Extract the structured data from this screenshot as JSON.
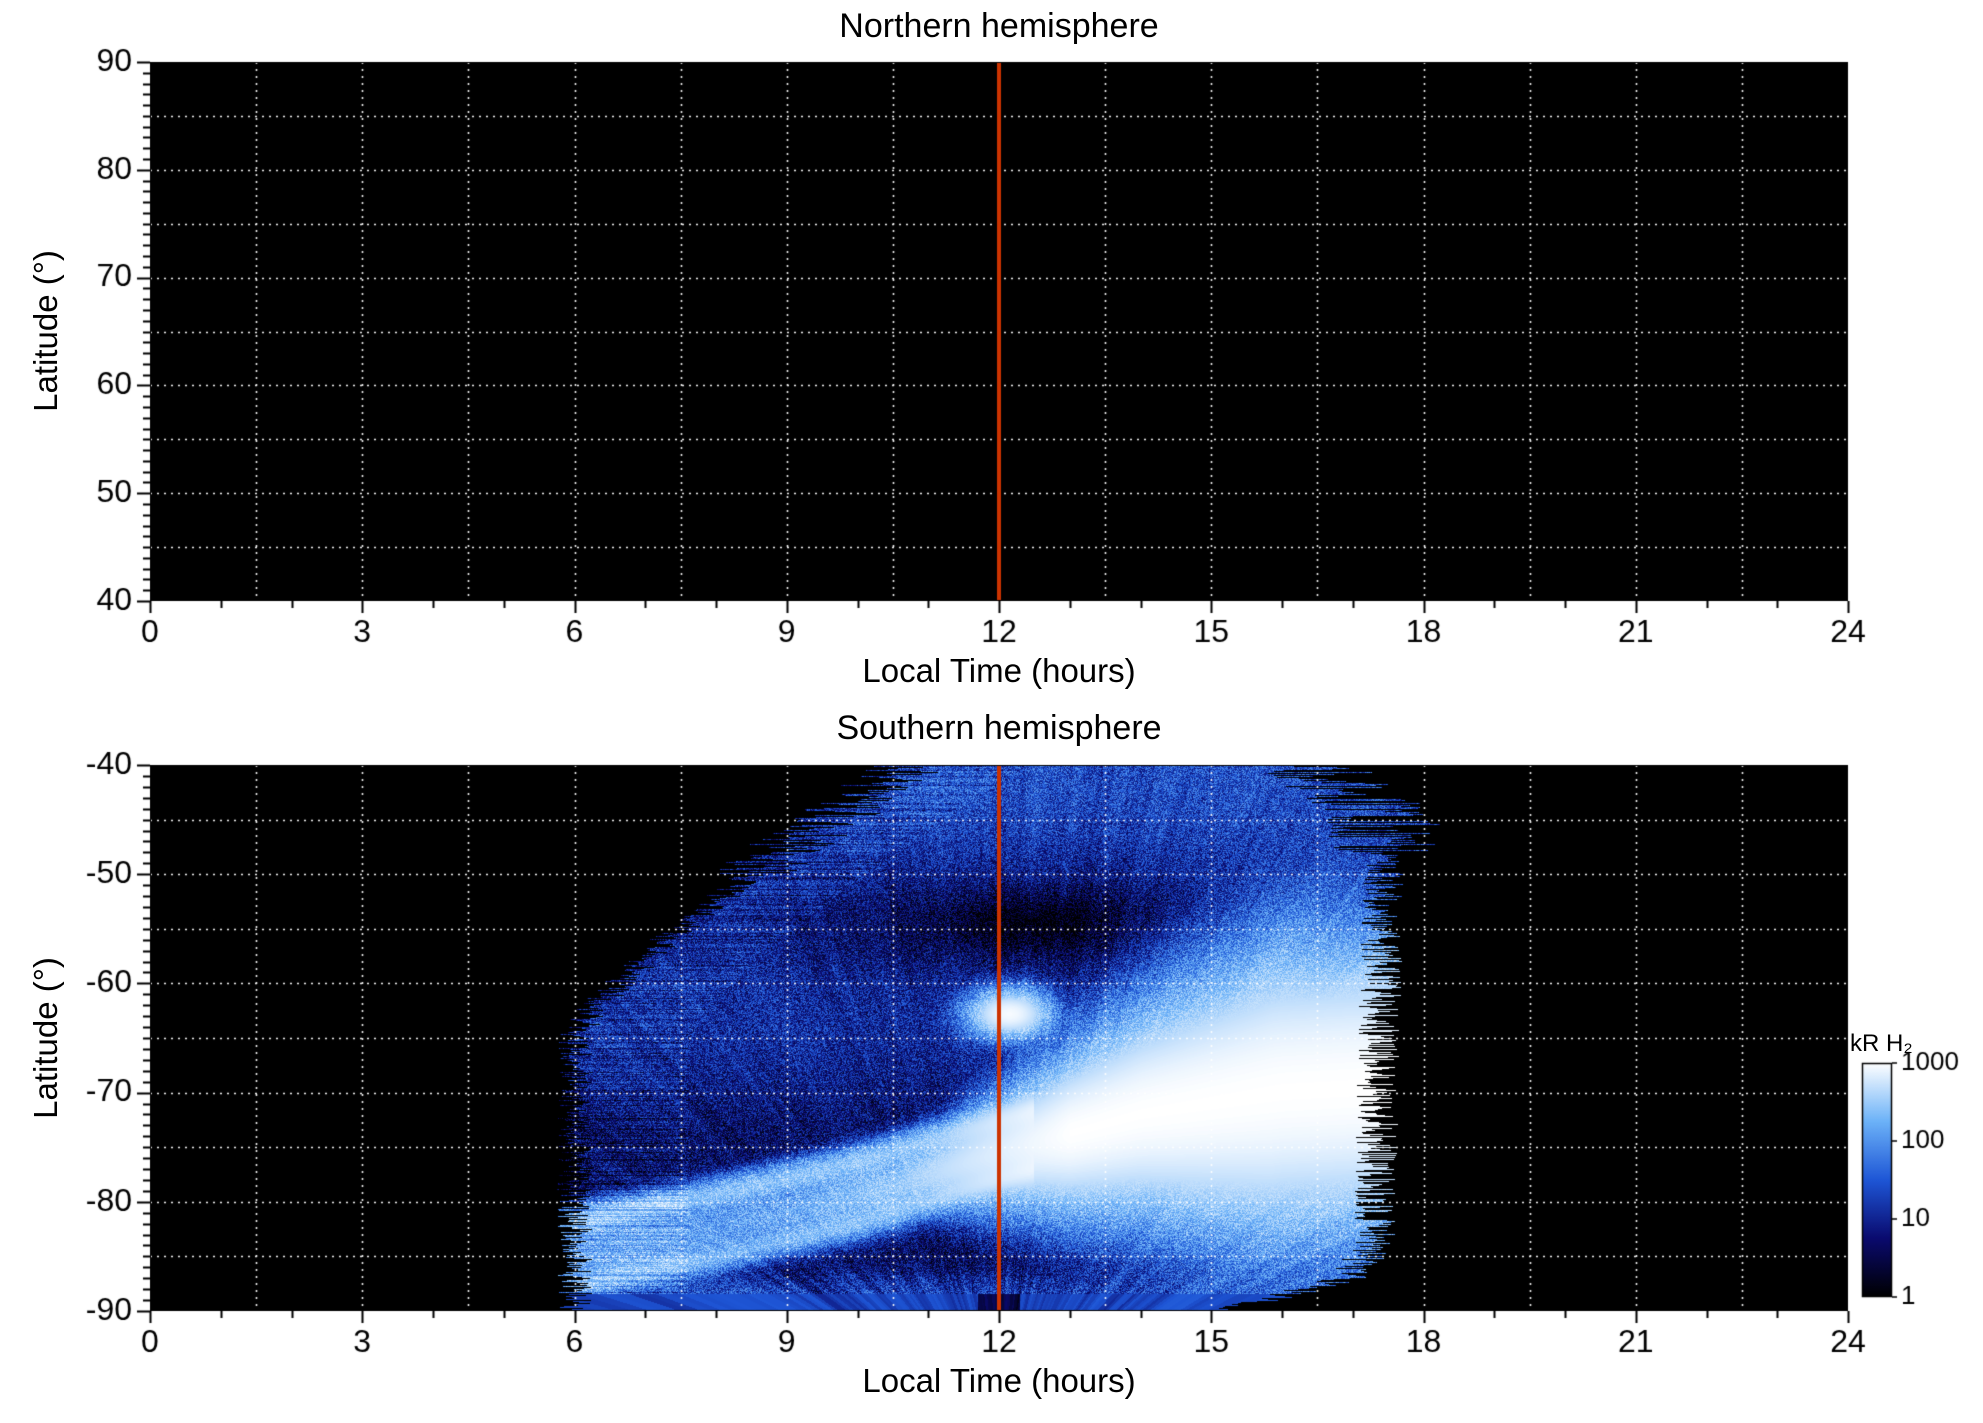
{
  "style": {
    "page_bg": "#ffffff",
    "plot_bg": "#000000",
    "grid_color": "#ffffff",
    "tick_color": "#000000",
    "text_color": "#000000",
    "noon_line_color": "#cc3300"
  },
  "colorbar": {
    "label": "kR H₂",
    "scale": "log",
    "range": [
      1,
      1000
    ],
    "ticks": [
      1000,
      100,
      10,
      1
    ],
    "colormap_stops": [
      "#000000",
      "#0a0a6e",
      "#1e56d6",
      "#6cb2f8",
      "#ffffff"
    ]
  },
  "chart_data": [
    {
      "type": "heatmap",
      "panel": "northern",
      "title": "Northern hemisphere",
      "xlabel": "Local Time (hours)",
      "ylabel": "Latitude (°)",
      "xlim": [
        0,
        24
      ],
      "ylim": [
        40,
        90
      ],
      "xticks": [
        0,
        3,
        6,
        9,
        12,
        15,
        18,
        21,
        24
      ],
      "yticks": [
        90,
        80,
        70,
        60,
        50,
        40
      ],
      "x_grid_step": 1.5,
      "y_grid_step": 5,
      "x_minor_step": 1,
      "y_minor_step": 1,
      "grid": true,
      "noon_line_x": 12,
      "coverage": "none",
      "note": "panel entirely background black: no emission data shown"
    },
    {
      "type": "heatmap",
      "panel": "southern",
      "title": "Southern hemisphere",
      "xlabel": "Local Time (hours)",
      "ylabel": "Latitude (°)",
      "xlim": [
        0,
        24
      ],
      "ylim": [
        -90,
        -40
      ],
      "xticks": [
        0,
        3,
        6,
        9,
        12,
        15,
        18,
        21,
        24
      ],
      "yticks": [
        -40,
        -50,
        -60,
        -70,
        -80,
        -90
      ],
      "x_grid_step": 1.5,
      "y_grid_step": 5,
      "x_minor_step": 1,
      "y_minor_step": 1,
      "grid": true,
      "noon_line_x": 12,
      "units": "kR H₂",
      "coverage": {
        "description": "emission observed only between ~06:00 and ~17:30 local time; sector narrows toward -40° (≈10.8–16.4 h) and is widest poleward of -65° (≈6–17.4 h)",
        "left_boundary_lat_hour": [
          [
            -40,
            10.8
          ],
          [
            -48,
            8.9
          ],
          [
            -56,
            7.3
          ],
          [
            -62,
            6.3
          ],
          [
            -65,
            6.0
          ],
          [
            -90,
            6.0
          ]
        ],
        "right_boundary_lat_hour": [
          [
            -40,
            16.4
          ],
          [
            -44,
            17.3
          ],
          [
            -45,
            17.45
          ],
          [
            -84,
            17.3
          ],
          [
            -87,
            16.9
          ],
          [
            -90,
            15.2
          ]
        ]
      },
      "features": [
        {
          "name": "auroral-oval-bright-band",
          "peak_kR": 1000,
          "path_hour_lat": [
            [
              6,
              -85
            ],
            [
              8,
              -82.5
            ],
            [
              10,
              -79.5
            ],
            [
              12,
              -75.5
            ],
            [
              14,
              -72
            ],
            [
              16,
              -70
            ],
            [
              17.4,
              -69.5
            ]
          ],
          "description": "bright white (~1000 kR) auroral band rising from (-85°, 6 h) to (-70°, 16 h); widest and brightest 13–17 h between -65° and -78°"
        },
        {
          "name": "cusp-spot",
          "hour": 12.15,
          "lat": -62.8,
          "peak_kR": 900,
          "description": "small isolated bright spot just equatorward of the oval near local noon"
        },
        {
          "name": "dark-low-emission-region",
          "hour_range": [
            10.5,
            14.5
          ],
          "lat_range": [
            -58,
            -51
          ],
          "kR": 2,
          "description": "speckled near-background region equatorward of the oval around noon"
        },
        {
          "name": "diffuse-emission",
          "kR_range": [
            3,
            100
          ],
          "description": "streaked/speckled diffuse blue emission filling the rest of the observed local-time sector"
        }
      ]
    }
  ]
}
